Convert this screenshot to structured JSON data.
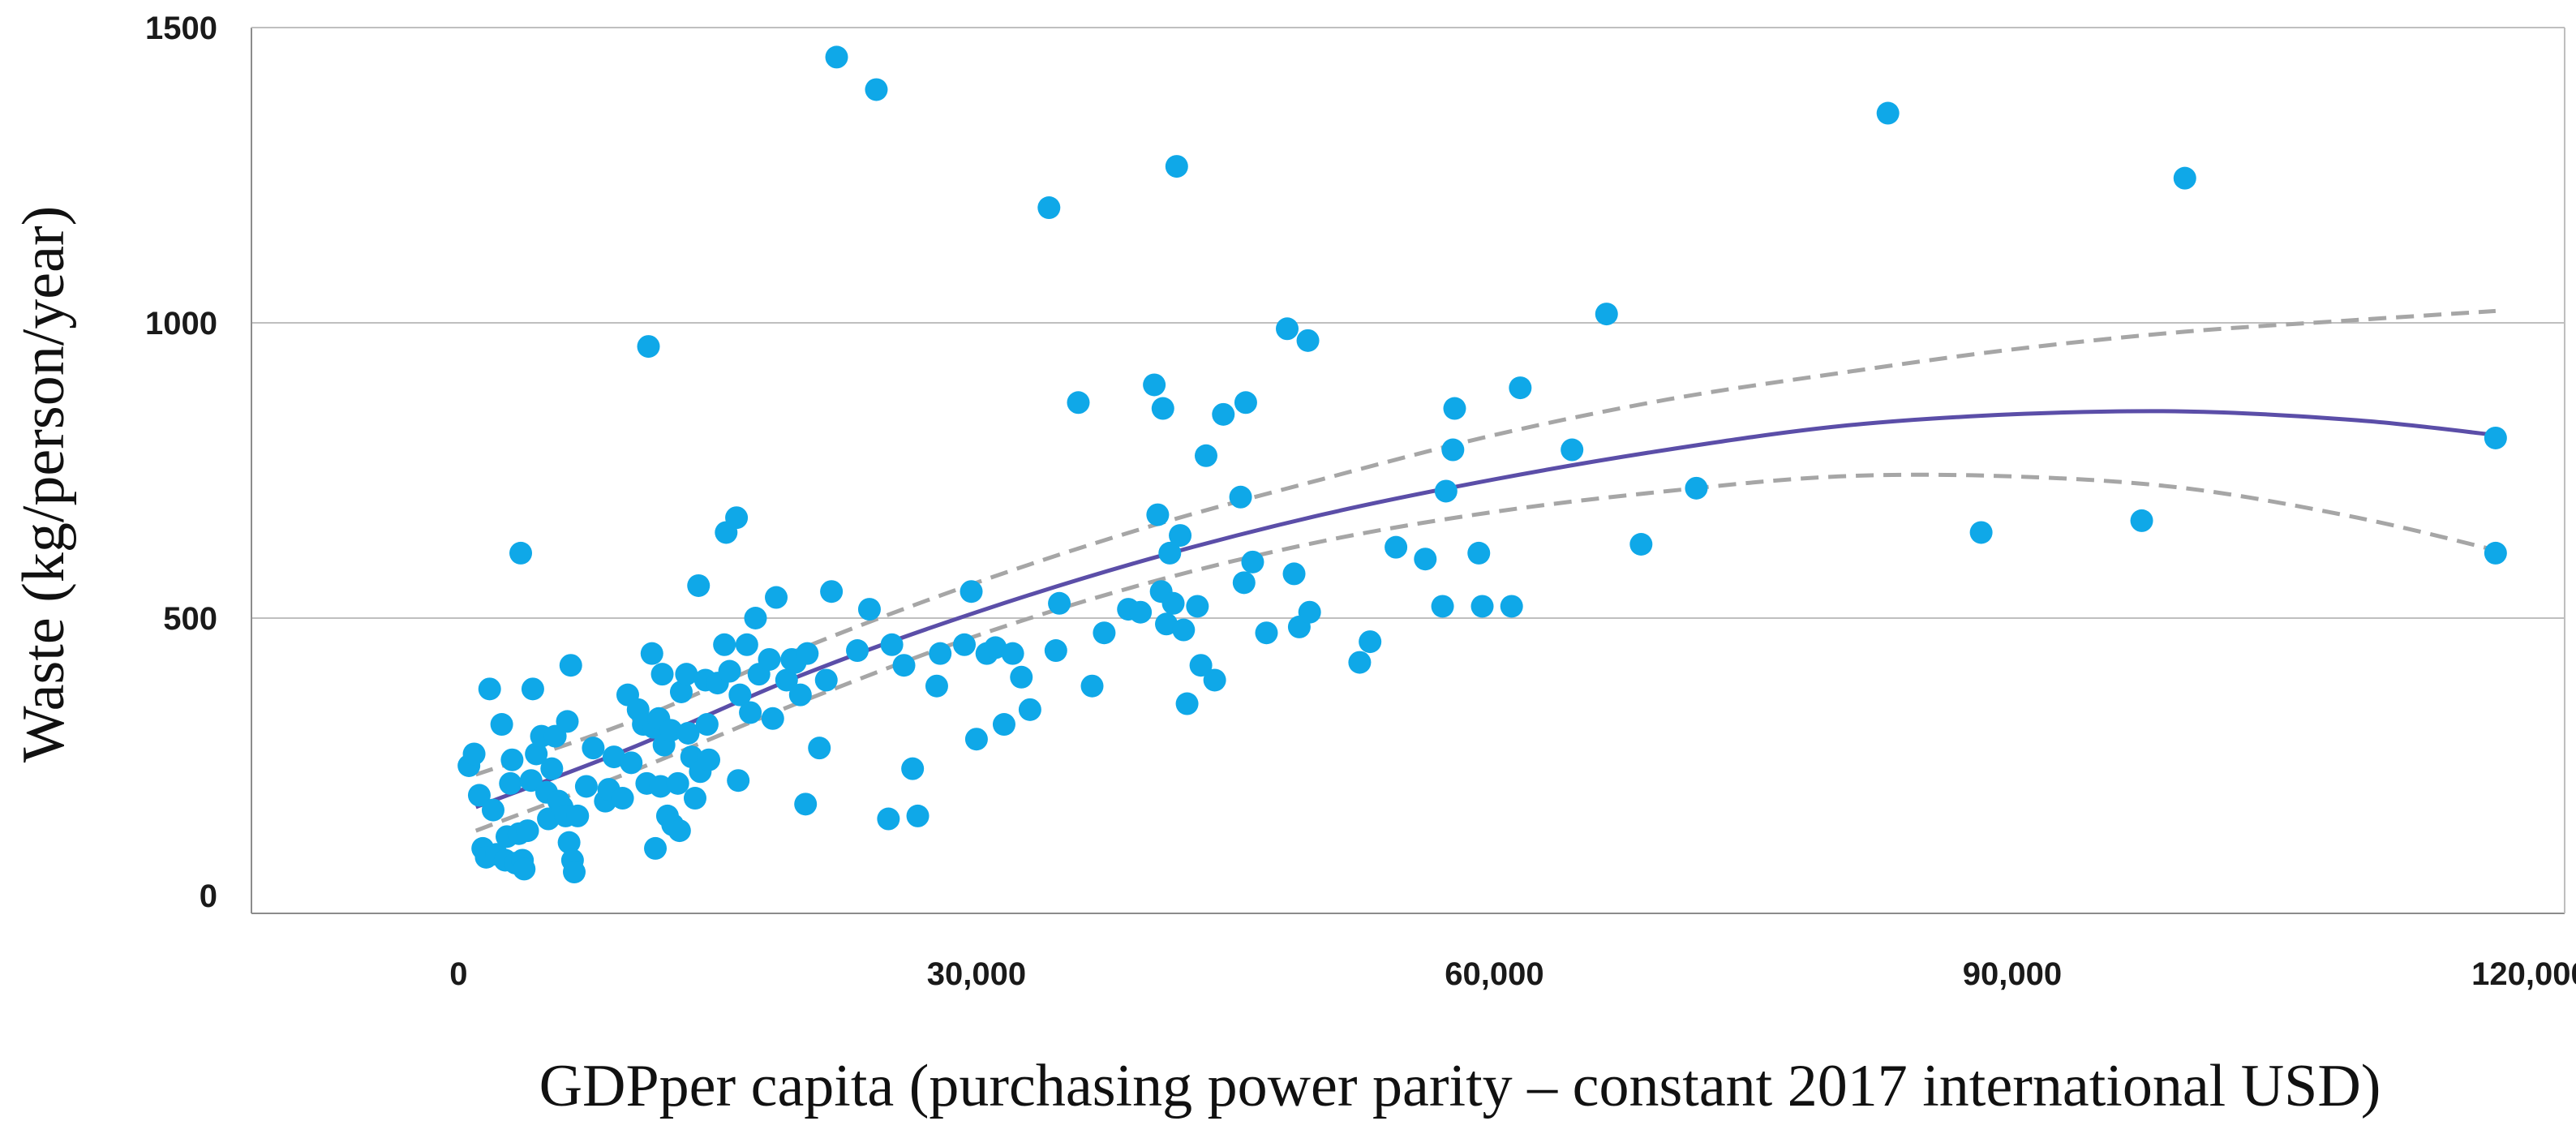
{
  "chart_data": {
    "type": "scatter",
    "title": "",
    "xlabel": "GDPper capita (purchasing power parity – constant 2017 international USD)",
    "ylabel": "Waste (kg/person/year)",
    "xlim": [
      -12000,
      122000
    ],
    "ylim": [
      0,
      1500
    ],
    "x_ticks": [
      0,
      30000,
      60000,
      90000,
      120000
    ],
    "x_tick_labels": [
      "0",
      "30,000",
      "60,000",
      "90,000",
      "120,000"
    ],
    "y_ticks": [
      0,
      500,
      1000,
      1500
    ],
    "y_tick_labels": [
      "0",
      "500",
      "1000",
      "1500"
    ],
    "grid": "horizontal",
    "colors": {
      "points": "#0fa8e8",
      "fit": "#5b4ea8",
      "ci": "#a6a6a6",
      "grid": "#bfbfbf",
      "axis": "#8c8c8c"
    },
    "series": [
      {
        "name": "countries",
        "kind": "scatter",
        "points": [
          [
            600,
            250
          ],
          [
            900,
            270
          ],
          [
            1200,
            200
          ],
          [
            1400,
            110
          ],
          [
            1600,
            95
          ],
          [
            1800,
            380
          ],
          [
            2000,
            175
          ],
          [
            2200,
            100
          ],
          [
            2500,
            320
          ],
          [
            2700,
            90
          ],
          [
            2800,
            130
          ],
          [
            3000,
            220
          ],
          [
            3100,
            260
          ],
          [
            3300,
            85
          ],
          [
            3500,
            135
          ],
          [
            3600,
            610
          ],
          [
            3700,
            90
          ],
          [
            3800,
            75
          ],
          [
            4000,
            140
          ],
          [
            4200,
            225
          ],
          [
            4300,
            380
          ],
          [
            4500,
            270
          ],
          [
            4800,
            300
          ],
          [
            5100,
            205
          ],
          [
            5200,
            160
          ],
          [
            5400,
            245
          ],
          [
            5600,
            300
          ],
          [
            5800,
            190
          ],
          [
            6000,
            180
          ],
          [
            6200,
            165
          ],
          [
            6300,
            325
          ],
          [
            6400,
            120
          ],
          [
            6500,
            420
          ],
          [
            6600,
            90
          ],
          [
            6700,
            70
          ],
          [
            6900,
            165
          ],
          [
            7400,
            215
          ],
          [
            7800,
            280
          ],
          [
            8500,
            190
          ],
          [
            8700,
            210
          ],
          [
            9000,
            265
          ],
          [
            9500,
            195
          ],
          [
            9800,
            370
          ],
          [
            10000,
            255
          ],
          [
            10400,
            345
          ],
          [
            10700,
            320
          ],
          [
            10900,
            220
          ],
          [
            11000,
            960
          ],
          [
            11200,
            440
          ],
          [
            11300,
            315
          ],
          [
            11400,
            110
          ],
          [
            11600,
            330
          ],
          [
            11700,
            215
          ],
          [
            11800,
            405
          ],
          [
            11900,
            285
          ],
          [
            12100,
            165
          ],
          [
            12300,
            310
          ],
          [
            12400,
            150
          ],
          [
            12700,
            220
          ],
          [
            12800,
            140
          ],
          [
            12900,
            375
          ],
          [
            13200,
            405
          ],
          [
            13300,
            305
          ],
          [
            13500,
            265
          ],
          [
            13700,
            195
          ],
          [
            13900,
            555
          ],
          [
            14000,
            240
          ],
          [
            14300,
            395
          ],
          [
            14400,
            320
          ],
          [
            14500,
            260
          ],
          [
            15000,
            390
          ],
          [
            15400,
            455
          ],
          [
            15500,
            645
          ],
          [
            15700,
            410
          ],
          [
            16100,
            670
          ],
          [
            16200,
            225
          ],
          [
            16300,
            370
          ],
          [
            16700,
            455
          ],
          [
            16900,
            340
          ],
          [
            17200,
            500
          ],
          [
            17400,
            405
          ],
          [
            18000,
            430
          ],
          [
            18200,
            330
          ],
          [
            18400,
            535
          ],
          [
            19000,
            395
          ],
          [
            19300,
            430
          ],
          [
            19500,
            425
          ],
          [
            19800,
            370
          ],
          [
            20100,
            185
          ],
          [
            20200,
            440
          ],
          [
            20900,
            280
          ],
          [
            21300,
            395
          ],
          [
            21600,
            545
          ],
          [
            21900,
            1450
          ],
          [
            23100,
            445
          ],
          [
            23800,
            515
          ],
          [
            24200,
            1395
          ],
          [
            24900,
            160
          ],
          [
            25100,
            455
          ],
          [
            25800,
            420
          ],
          [
            26300,
            245
          ],
          [
            26600,
            165
          ],
          [
            27700,
            385
          ],
          [
            27900,
            440
          ],
          [
            29300,
            455
          ],
          [
            29700,
            545
          ],
          [
            30000,
            295
          ],
          [
            30600,
            440
          ],
          [
            31100,
            450
          ],
          [
            31600,
            320
          ],
          [
            32100,
            440
          ],
          [
            32600,
            400
          ],
          [
            33100,
            345
          ],
          [
            34200,
            1195
          ],
          [
            34600,
            445
          ],
          [
            34800,
            525
          ],
          [
            35900,
            865
          ],
          [
            36700,
            385
          ],
          [
            37400,
            475
          ],
          [
            38800,
            515
          ],
          [
            39500,
            510
          ],
          [
            40300,
            895
          ],
          [
            40500,
            675
          ],
          [
            40700,
            545
          ],
          [
            40800,
            855
          ],
          [
            41000,
            490
          ],
          [
            41200,
            610
          ],
          [
            41400,
            525
          ],
          [
            41600,
            1265
          ],
          [
            41800,
            640
          ],
          [
            42000,
            480
          ],
          [
            42200,
            355
          ],
          [
            42800,
            520
          ],
          [
            43000,
            420
          ],
          [
            43300,
            775
          ],
          [
            43800,
            395
          ],
          [
            44300,
            845
          ],
          [
            45300,
            705
          ],
          [
            45500,
            560
          ],
          [
            45600,
            865
          ],
          [
            46000,
            595
          ],
          [
            46800,
            475
          ],
          [
            48000,
            990
          ],
          [
            48400,
            575
          ],
          [
            48700,
            485
          ],
          [
            49200,
            970
          ],
          [
            49300,
            510
          ],
          [
            52200,
            425
          ],
          [
            52800,
            460
          ],
          [
            54300,
            620
          ],
          [
            56000,
            600
          ],
          [
            57000,
            520
          ],
          [
            57200,
            715
          ],
          [
            57600,
            785
          ],
          [
            57700,
            855
          ],
          [
            59100,
            610
          ],
          [
            59300,
            520
          ],
          [
            61000,
            520
          ],
          [
            61500,
            890
          ],
          [
            64500,
            785
          ],
          [
            66500,
            1015
          ],
          [
            68500,
            625
          ],
          [
            71700,
            720
          ],
          [
            82800,
            1355
          ],
          [
            88200,
            645
          ],
          [
            97500,
            665
          ],
          [
            100000,
            1245
          ],
          [
            118000,
            805
          ],
          [
            118000,
            610
          ]
        ]
      },
      {
        "name": "quadratic fit",
        "kind": "line",
        "x": [
          1000,
          10000,
          20000,
          30000,
          40000,
          50000,
          60000,
          70000,
          80000,
          90000,
          100000,
          110000,
          118000
        ],
        "y": [
          180,
          280,
          405,
          510,
          600,
          675,
          735,
          785,
          825,
          845,
          850,
          835,
          810
        ]
      },
      {
        "name": "upper confidence bound",
        "kind": "dashed-line",
        "x": [
          1000,
          10000,
          20000,
          30000,
          40000,
          50000,
          60000,
          70000,
          80000,
          90000,
          100000,
          110000,
          118000
        ],
        "y": [
          235,
          325,
          450,
          560,
          655,
          735,
          810,
          870,
          915,
          955,
          985,
          1005,
          1020
        ]
      },
      {
        "name": "lower confidence bound",
        "kind": "dashed-line",
        "x": [
          1000,
          10000,
          20000,
          30000,
          40000,
          50000,
          60000,
          70000,
          80000,
          90000,
          100000,
          110000,
          118000
        ],
        "y": [
          140,
          240,
          360,
          470,
          560,
          630,
          680,
          715,
          740,
          740,
          720,
          670,
          615
        ]
      }
    ]
  }
}
